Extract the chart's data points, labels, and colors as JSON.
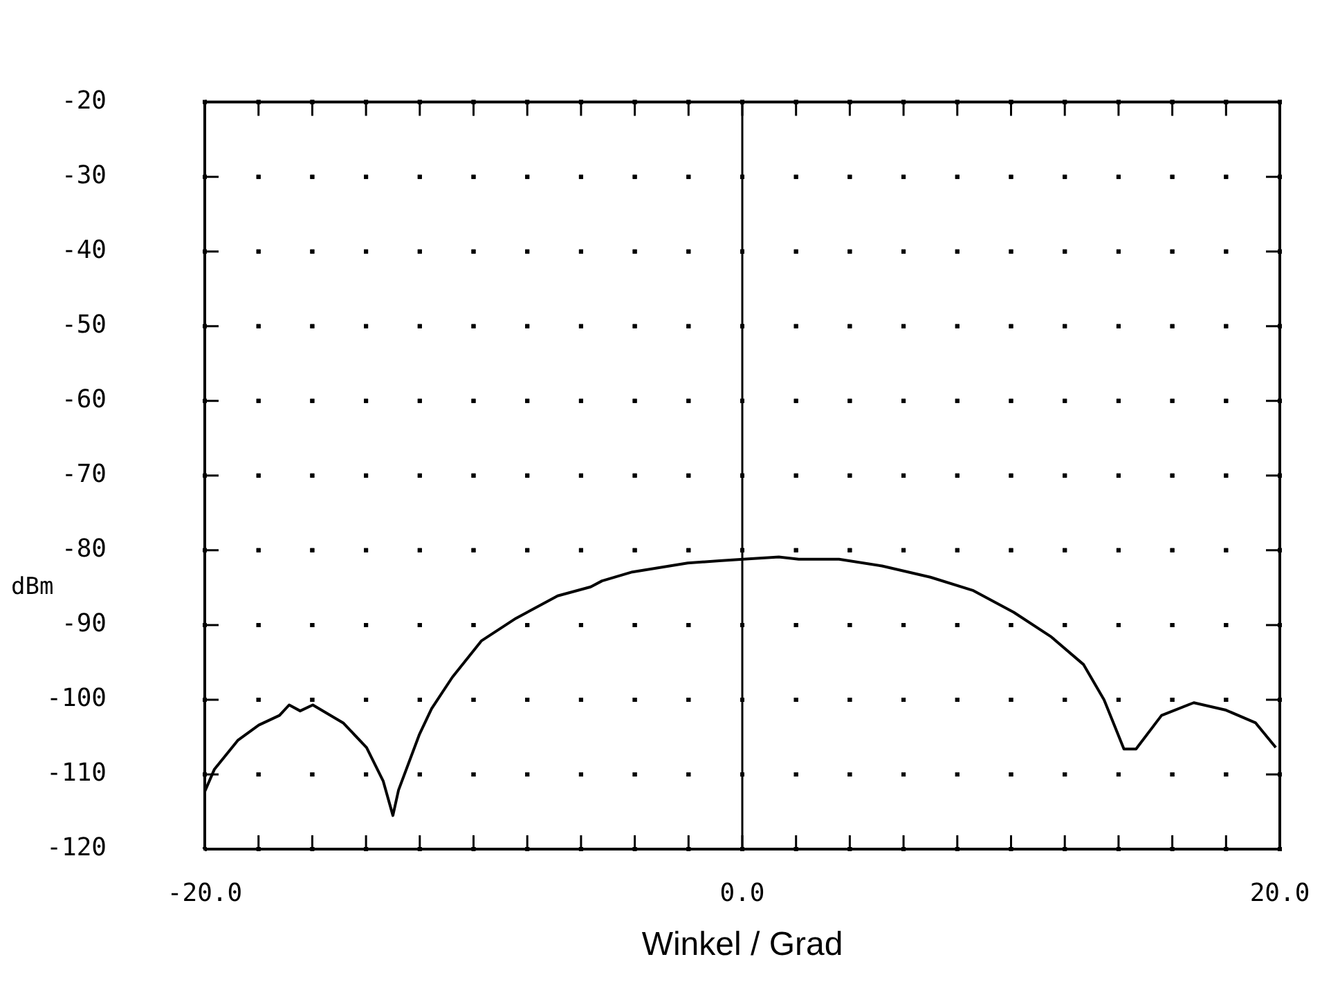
{
  "chart_data": {
    "type": "line",
    "xlabel": "Winkel / Grad",
    "ylabel": "dBm",
    "x": [
      -20,
      -19.64,
      -18.76,
      -17.99,
      -17.22,
      -16.86,
      -16.45,
      -15.98,
      -14.85,
      -13.98,
      -13.36,
      -13,
      -12.79,
      -12.02,
      -11.56,
      -10.79,
      -9.7,
      -8.42,
      -6.87,
      -5.64,
      -5.22,
      -4.09,
      -2.03,
      -0.85,
      0.03,
      1.36,
      2.1,
      3.6,
      5.2,
      7,
      8.6,
      10.1,
      11.5,
      12.7,
      13.46,
      14.2,
      14.65,
      15.6,
      16.8,
      18,
      19.1,
      19.85
    ],
    "series": [
      {
        "color": "#000000",
        "values": [
          -112.3,
          -109.3,
          -105.4,
          -103.4,
          -102.1,
          -100.7,
          -101.5,
          -100.7,
          -103.1,
          -106.4,
          -110.9,
          -115.5,
          -112.1,
          -104.7,
          -101.2,
          -97,
          -92.1,
          -89.1,
          -86.1,
          -84.9,
          -84.1,
          -82.9,
          -81.7,
          -81.4,
          -81.2,
          -80.9,
          -81.2,
          -81.2,
          -82.1,
          -83.6,
          -85.4,
          -88.3,
          -91.6,
          -95.3,
          -100,
          -106.6,
          -106.6,
          -102.1,
          -100.4,
          -101.4,
          -103.1,
          -106.4
        ]
      }
    ],
    "xlim": [
      -20,
      20
    ],
    "ylim": [
      -120,
      -20
    ],
    "xticks": [
      {
        "value": -20,
        "label": "-20.0"
      },
      {
        "value": -18,
        "label": null
      },
      {
        "value": -16,
        "label": null
      },
      {
        "value": -14,
        "label": null
      },
      {
        "value": -12,
        "label": null
      },
      {
        "value": -10,
        "label": null
      },
      {
        "value": -8,
        "label": null
      },
      {
        "value": -6,
        "label": null
      },
      {
        "value": -4,
        "label": null
      },
      {
        "value": -2,
        "label": null
      },
      {
        "value": 0,
        "label": "0.0"
      },
      {
        "value": 2,
        "label": null
      },
      {
        "value": 4,
        "label": null
      },
      {
        "value": 6,
        "label": null
      },
      {
        "value": 8,
        "label": null
      },
      {
        "value": 10,
        "label": null
      },
      {
        "value": 12,
        "label": null
      },
      {
        "value": 14,
        "label": null
      },
      {
        "value": 16,
        "label": null
      },
      {
        "value": 18,
        "label": null
      },
      {
        "value": 20,
        "label": "20.0"
      }
    ],
    "yticks": [
      -120,
      -110,
      -100,
      -90,
      -80,
      -70,
      -60,
      -50,
      -40,
      -30,
      -20
    ],
    "ref_lines": [
      {
        "axis": "x",
        "value": 0,
        "color": "#000000"
      }
    ],
    "grid": true,
    "marker": "none",
    "line_style": "solid"
  }
}
